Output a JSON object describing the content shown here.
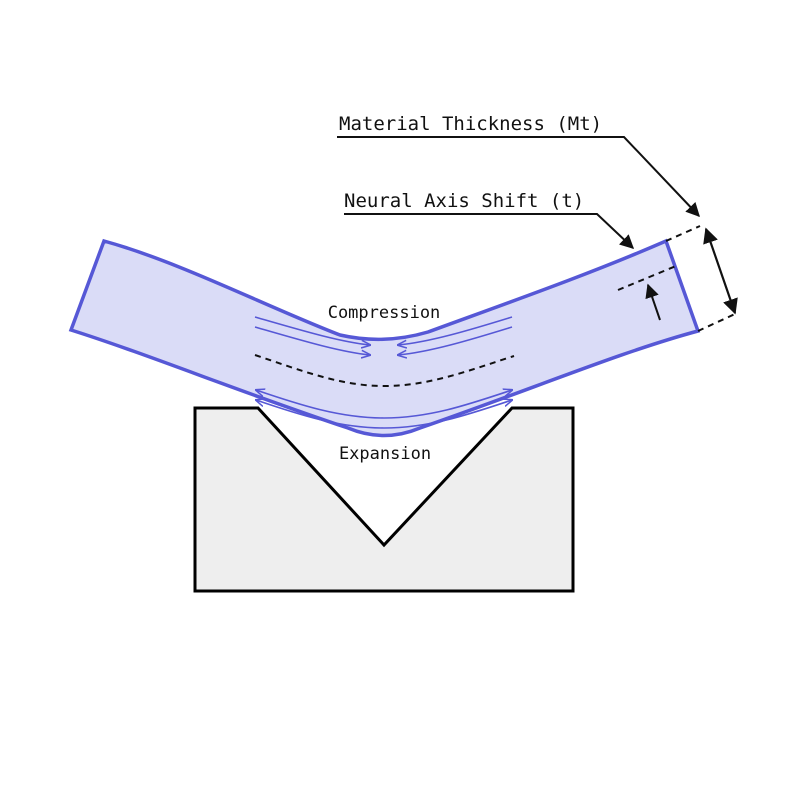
{
  "labels": {
    "material_thickness": "Material Thickness (Mt)",
    "neural_axis_shift": "Neural Axis Shift (t)",
    "compression": "Compression",
    "expansion": "Expansion"
  },
  "colors": {
    "sheet_fill": "#dadcf7",
    "sheet_stroke": "#5658d6",
    "die_fill": "#eeeeee",
    "die_stroke": "#000000",
    "ink": "#111111"
  }
}
